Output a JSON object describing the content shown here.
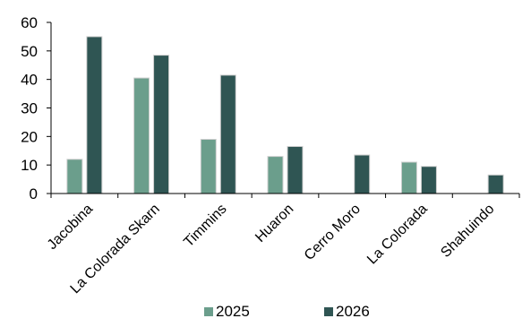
{
  "chart_data": {
    "type": "bar",
    "categories": [
      "Jacobina",
      "La Colorada Skarn",
      "Timmins",
      "Huaron",
      "Cerro Moro",
      "La Colorada",
      "Shahuindo"
    ],
    "series": [
      {
        "name": "2025",
        "values": [
          12,
          40.5,
          19,
          13,
          null,
          11,
          null
        ],
        "color": "#6b9e8c"
      },
      {
        "name": "2026",
        "values": [
          55,
          48.5,
          41.5,
          16.5,
          13.5,
          9.5,
          6.5
        ],
        "color": "#2f5553"
      }
    ],
    "y_ticks": [
      "0",
      "10",
      "20",
      "30",
      "40",
      "50",
      "60"
    ],
    "ylim": [
      0,
      60
    ],
    "grid": false,
    "legend_position": "bottom"
  }
}
